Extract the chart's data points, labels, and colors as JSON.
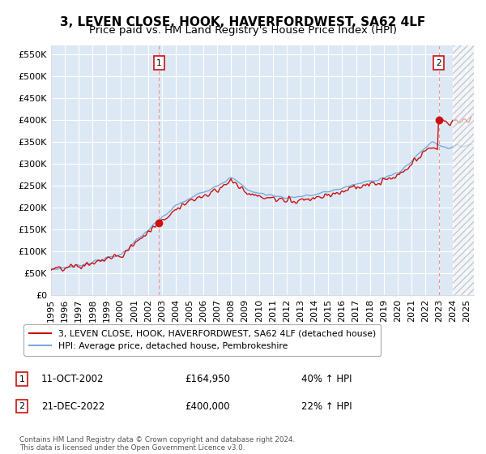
{
  "title": "3, LEVEN CLOSE, HOOK, HAVERFORDWEST, SA62 4LF",
  "subtitle": "Price paid vs. HM Land Registry's House Price Index (HPI)",
  "ylim": [
    0,
    570000
  ],
  "yticks": [
    0,
    50000,
    100000,
    150000,
    200000,
    250000,
    300000,
    350000,
    400000,
    450000,
    500000,
    550000
  ],
  "ytick_labels": [
    "£0",
    "£50K",
    "£100K",
    "£150K",
    "£200K",
    "£250K",
    "£300K",
    "£350K",
    "£400K",
    "£450K",
    "£500K",
    "£550K"
  ],
  "hpi_color": "#7aabdb",
  "price_color": "#cc1111",
  "vline_color": "#ee8888",
  "legend_price_label": "3, LEVEN CLOSE, HOOK, HAVERFORDWEST, SA62 4LF (detached house)",
  "legend_hpi_label": "HPI: Average price, detached house, Pembrokeshire",
  "transaction_1_date": "11-OCT-2002",
  "transaction_1_price": "£164,950",
  "transaction_1_pct": "40% ↑ HPI",
  "transaction_2_date": "21-DEC-2022",
  "transaction_2_price": "£400,000",
  "transaction_2_pct": "22% ↑ HPI",
  "footnote": "Contains HM Land Registry data © Crown copyright and database right 2024.\nThis data is licensed under the Open Government Licence v3.0.",
  "background_color": "#ffffff",
  "plot_bg_color": "#dde8f5",
  "grid_color": "#ffffff",
  "title_fontsize": 11,
  "subtitle_fontsize": 9.5,
  "tick_fontsize": 8,
  "xlim_start": 1995.0,
  "xlim_end": 2025.5,
  "hatch_start": 2024.0
}
